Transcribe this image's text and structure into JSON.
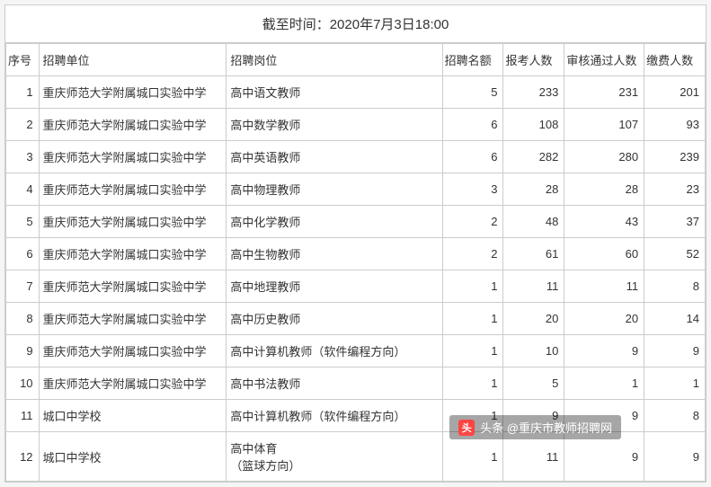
{
  "title": "截至时间：2020年7月3日18:00",
  "columns": [
    "序号",
    "招聘单位",
    "招聘岗位",
    "招聘名额",
    "报考人数",
    "审核通过人数",
    "缴费人数"
  ],
  "rows": [
    {
      "seq": "1",
      "unit": "重庆师范大学附属城口实验中学",
      "position": "高中语文教师",
      "quota": "5",
      "applicants": "233",
      "approved": "231",
      "paid": "201"
    },
    {
      "seq": "2",
      "unit": "重庆师范大学附属城口实验中学",
      "position": "高中数学教师",
      "quota": "6",
      "applicants": "108",
      "approved": "107",
      "paid": "93"
    },
    {
      "seq": "3",
      "unit": "重庆师范大学附属城口实验中学",
      "position": "高中英语教师",
      "quota": "6",
      "applicants": "282",
      "approved": "280",
      "paid": "239"
    },
    {
      "seq": "4",
      "unit": "重庆师范大学附属城口实验中学",
      "position": "高中物理教师",
      "quota": "3",
      "applicants": "28",
      "approved": "28",
      "paid": "23"
    },
    {
      "seq": "5",
      "unit": "重庆师范大学附属城口实验中学",
      "position": "高中化学教师",
      "quota": "2",
      "applicants": "48",
      "approved": "43",
      "paid": "37"
    },
    {
      "seq": "6",
      "unit": "重庆师范大学附属城口实验中学",
      "position": "高中生物教师",
      "quota": "2",
      "applicants": "61",
      "approved": "60",
      "paid": "52"
    },
    {
      "seq": "7",
      "unit": "重庆师范大学附属城口实验中学",
      "position": "高中地理教师",
      "quota": "1",
      "applicants": "11",
      "approved": "11",
      "paid": "8"
    },
    {
      "seq": "8",
      "unit": "重庆师范大学附属城口实验中学",
      "position": "高中历史教师",
      "quota": "1",
      "applicants": "20",
      "approved": "20",
      "paid": "14"
    },
    {
      "seq": "9",
      "unit": "重庆师范大学附属城口实验中学",
      "position": "高中计算机教师（软件编程方向）",
      "quota": "1",
      "applicants": "10",
      "approved": "9",
      "paid": "9"
    },
    {
      "seq": "10",
      "unit": "重庆师范大学附属城口实验中学",
      "position": "高中书法教师",
      "quota": "1",
      "applicants": "5",
      "approved": "1",
      "paid": "1"
    },
    {
      "seq": "11",
      "unit": "城口中学校",
      "position": "高中计算机教师（软件编程方向）",
      "quota": "1",
      "applicants": "9",
      "approved": "9",
      "paid": "8"
    },
    {
      "seq": "12",
      "unit": "城口中学校",
      "position": "高中体育\n（篮球方向）",
      "quota": "1",
      "applicants": "11",
      "approved": "9",
      "paid": "9"
    }
  ],
  "watermark": {
    "text": "头条 @重庆市教师招聘网",
    "icon": "头"
  },
  "styles": {
    "background_color": "#f5f5f5",
    "table_bg": "#ffffff",
    "border_color": "#cccccc",
    "text_color": "#333333",
    "font_size_title": 15,
    "font_size_body": 13,
    "watermark_bg": "rgba(0,0,0,0.35)",
    "watermark_icon_bg": "#ff4444"
  }
}
